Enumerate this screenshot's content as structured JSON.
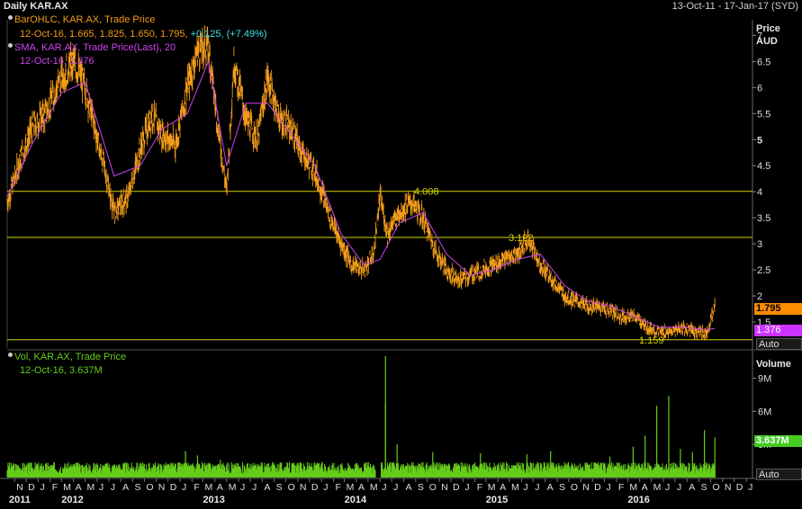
{
  "header": {
    "title": "Daily KAR.AX",
    "date_range": "13-Oct-11 - 17-Jan-17 (SYD)"
  },
  "legend": {
    "ohlc_label": "BarOHLC, KAR.AX, Trade Price",
    "ohlc_values": "12-Oct-16, 1.665, 1.825, 1.650, 1.795,",
    "ohlc_change": "+0.125, (+7.49%)",
    "sma_label": "SMA, KAR.AX, Trade Price(Last),  20",
    "sma_values": "12-Oct-16, 1.376",
    "vol_label": "Vol, KAR.AX, Trade Price",
    "vol_values": "12-Oct-16, 3.637M"
  },
  "price_axis": {
    "title_line1": "Price",
    "title_line2": "AUD",
    "auto_label": "Auto"
  },
  "volume_axis": {
    "title": "Volume",
    "auto_label": "Auto"
  },
  "tags": {
    "last_price": "1.795",
    "sma": "1.376",
    "volume": "3.637M"
  },
  "colors": {
    "ohlc": "#f39c1a",
    "sma": "#cc44ee",
    "volume": "#66cc1a",
    "hline": "#d6d600",
    "change": "#40e0e0",
    "price_tag": "#ff8c00",
    "sma_tag": "#cc33ff",
    "vol_tag": "#44cc22"
  },
  "chart_data": [
    {
      "type": "line",
      "title": "Daily KAR.AX",
      "ylabel": "Price AUD",
      "ylim": [
        1.0,
        7.3
      ],
      "y_ticks": [
        "1.5",
        "2",
        "2.5",
        "3",
        "3.5",
        "4",
        "4.5",
        "5",
        "5.5",
        "6",
        "6.5",
        "7"
      ],
      "y_bold_ticks": [
        "5"
      ],
      "horizontal_lines": [
        {
          "value": 4.008,
          "label": "4.008"
        },
        {
          "value": 3.122,
          "label": "3.122"
        },
        {
          "value": 1.159,
          "label": "1.159"
        }
      ],
      "series": [
        {
          "name": "BarOHLC, KAR.AX, Trade Price",
          "x": [
            "2011-10-13",
            "2011-11-15",
            "2011-12-15",
            "2012-01-20",
            "2012-03-01",
            "2012-04-01",
            "2012-05-01",
            "2012-06-15",
            "2012-07-15",
            "2012-08-20",
            "2012-09-20",
            "2012-10-20",
            "2012-11-15",
            "2012-12-20",
            "2013-01-20",
            "2013-02-15",
            "2013-03-15",
            "2013-04-10",
            "2013-05-01",
            "2013-05-20",
            "2013-06-20",
            "2013-07-20",
            "2013-08-15",
            "2013-09-15",
            "2013-10-15",
            "2013-11-15",
            "2013-12-15",
            "2014-01-20",
            "2014-02-20",
            "2014-03-20",
            "2014-04-20",
            "2014-05-15",
            "2014-06-01",
            "2014-06-20",
            "2014-07-20",
            "2014-08-20",
            "2014-09-20",
            "2014-10-20",
            "2014-11-20",
            "2014-12-20",
            "2015-01-20",
            "2015-02-20",
            "2015-03-20",
            "2015-04-20",
            "2015-05-20",
            "2015-06-20",
            "2015-07-20",
            "2015-08-20",
            "2015-09-20",
            "2015-10-20",
            "2015-11-20",
            "2015-12-20",
            "2016-01-20",
            "2016-02-20",
            "2016-03-20",
            "2016-04-20",
            "2016-05-20",
            "2016-06-20",
            "2016-07-20",
            "2016-08-20",
            "2016-09-20",
            "2016-10-12"
          ],
          "values": [
            3.8,
            4.6,
            5.2,
            5.5,
            6.2,
            6.5,
            6.0,
            4.6,
            3.6,
            3.9,
            4.8,
            5.5,
            5.1,
            4.9,
            6.0,
            6.7,
            6.8,
            5.2,
            4.0,
            6.5,
            5.4,
            5.0,
            6.2,
            5.4,
            5.2,
            4.7,
            4.4,
            3.6,
            3.0,
            2.6,
            2.5,
            2.8,
            3.9,
            3.2,
            3.6,
            3.8,
            3.5,
            2.9,
            2.5,
            2.3,
            2.4,
            2.5,
            2.6,
            2.7,
            2.8,
            3.1,
            2.6,
            2.3,
            2.0,
            1.9,
            1.8,
            1.8,
            1.7,
            1.6,
            1.6,
            1.4,
            1.3,
            1.3,
            1.4,
            1.3,
            1.3,
            1.795
          ]
        },
        {
          "name": "SMA, KAR.AX, Trade Price(Last), 20",
          "x": [
            "2011-10-13",
            "2011-12-15",
            "2012-03-01",
            "2012-05-01",
            "2012-07-15",
            "2012-09-20",
            "2012-11-15",
            "2013-01-20",
            "2013-03-15",
            "2013-05-01",
            "2013-06-20",
            "2013-08-15",
            "2013-10-15",
            "2013-12-15",
            "2014-02-20",
            "2014-04-20",
            "2014-06-01",
            "2014-07-20",
            "2014-09-20",
            "2014-11-20",
            "2015-01-20",
            "2015-03-20",
            "2015-05-20",
            "2015-07-20",
            "2015-09-20",
            "2015-11-20",
            "2016-01-20",
            "2016-03-20",
            "2016-05-20",
            "2016-07-20",
            "2016-09-20",
            "2016-10-12"
          ],
          "values": [
            3.9,
            4.9,
            5.9,
            6.1,
            4.3,
            4.5,
            5.2,
            5.5,
            6.5,
            4.5,
            5.7,
            5.7,
            5.1,
            4.5,
            3.2,
            2.6,
            2.7,
            3.4,
            3.6,
            2.8,
            2.4,
            2.5,
            2.7,
            2.8,
            2.2,
            1.9,
            1.8,
            1.6,
            1.4,
            1.4,
            1.35,
            1.376
          ]
        }
      ]
    },
    {
      "type": "bar",
      "title": "Vol, KAR.AX, Trade Price",
      "ylabel": "Volume",
      "y_ticks": [
        "3M",
        "6M",
        "9M"
      ],
      "ylim": [
        0,
        11000000
      ],
      "categories": [
        "N",
        "D",
        "J",
        "F",
        "M",
        "A",
        "M",
        "J",
        "J",
        "A",
        "S",
        "O",
        "N",
        "D",
        "J",
        "F",
        "M",
        "A",
        "M",
        "J",
        "J",
        "A",
        "S",
        "O",
        "N",
        "D",
        "J",
        "F",
        "M",
        "A",
        "M",
        "J",
        "J",
        "A",
        "S",
        "O",
        "N",
        "D",
        "J",
        "F",
        "M",
        "A",
        "M",
        "J",
        "J",
        "A",
        "S",
        "O",
        "N",
        "D",
        "J",
        "F",
        "M",
        "A",
        "M",
        "J",
        "J",
        "A",
        "S",
        "O",
        "N",
        "D",
        "J"
      ],
      "x_years": [
        "2011",
        "2012",
        "2013",
        "2014",
        "2015",
        "2016"
      ],
      "series": [
        {
          "name": "Vol, KAR.AX, Trade Price",
          "x": [
            "2012-07",
            "2013-01",
            "2013-02",
            "2013-04",
            "2014-06",
            "2014-06",
            "2014-07",
            "2014-10",
            "2015-02",
            "2015-06",
            "2015-08",
            "2016-01",
            "2016-03",
            "2016-04",
            "2016-05",
            "2016-06",
            "2016-07",
            "2016-08",
            "2016-09",
            "2016-10-12"
          ],
          "values": [
            1200000,
            2400000,
            2000000,
            1600000,
            11000000,
            6800000,
            3000000,
            2300000,
            2200000,
            2100000,
            2400000,
            1900000,
            2800000,
            3800000,
            6500000,
            7400000,
            2600000,
            2300000,
            4300000,
            3637000
          ]
        }
      ]
    }
  ]
}
